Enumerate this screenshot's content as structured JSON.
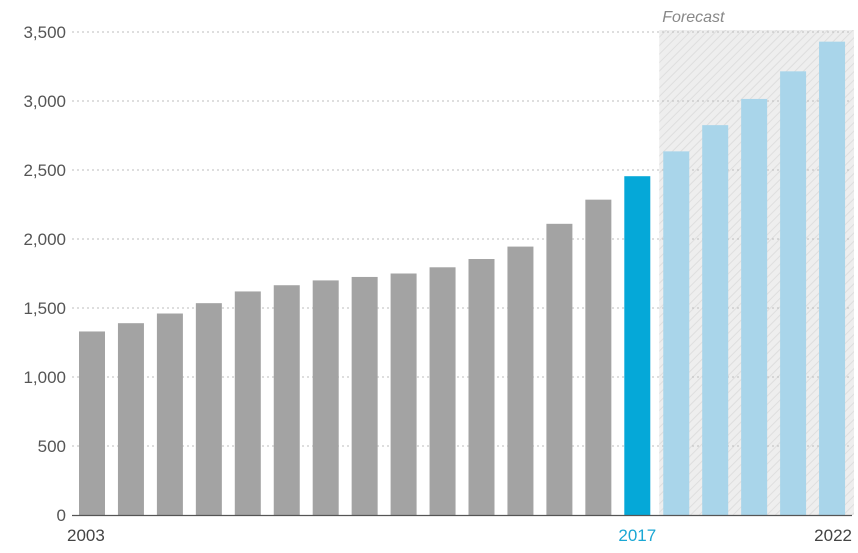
{
  "chart_data": {
    "type": "bar",
    "title": "",
    "xlabel": "",
    "ylabel": "",
    "ylim": [
      0,
      3500
    ],
    "yticks": [
      0,
      500,
      1000,
      1500,
      2000,
      2500,
      3000,
      3500
    ],
    "ytick_labels": [
      "0",
      "500",
      "1,000",
      "1,500",
      "2,000",
      "2,500",
      "3,000",
      "3,500"
    ],
    "categories": [
      "2003",
      "2004",
      "2005",
      "2006",
      "2007",
      "2008",
      "2009",
      "2010",
      "2011",
      "2012",
      "2013",
      "2014",
      "2015",
      "2016",
      "2017",
      "2018",
      "2019",
      "2020",
      "2021",
      "2022"
    ],
    "values": [
      1330,
      1390,
      1460,
      1535,
      1620,
      1665,
      1700,
      1725,
      1750,
      1795,
      1855,
      1945,
      2110,
      2285,
      2455,
      2635,
      2825,
      3015,
      3215,
      3430
    ],
    "shown_xtick_labels": [
      "2003",
      "2017",
      "2022"
    ],
    "highlight_category": "2017",
    "forecast_categories": [
      "2018",
      "2019",
      "2020",
      "2021",
      "2022"
    ],
    "forecast_label": "Forecast",
    "grid": true,
    "colors": {
      "actual": "#a3a3a3",
      "highlight": "#05a8d8",
      "forecast": "#a9d5ea",
      "highlight_tick": "#1aa7d4",
      "forecast_region": "#ededed"
    }
  }
}
